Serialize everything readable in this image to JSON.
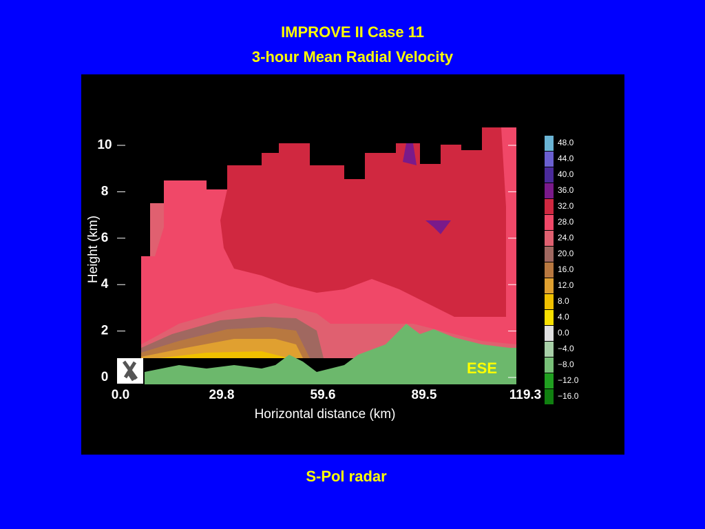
{
  "header": {
    "title": "IMPROVE II Case 11",
    "subtitle": "3-hour Mean Radial Velocity"
  },
  "figure": {
    "y_label": "Height (km)",
    "x_label": "Horizontal distance (km)",
    "yticks": [
      "0",
      "2",
      "4",
      "6",
      "8",
      "10"
    ],
    "xticks": [
      "0.0",
      "29.8",
      "59.6",
      "89.5",
      "119.3"
    ],
    "annotation": "ESE",
    "colorbar": [
      {
        "label": "48.0",
        "color": "#6ab4d4"
      },
      {
        "label": "44.0",
        "color": "#6a5fd0"
      },
      {
        "label": "40.0",
        "color": "#4a2a9a"
      },
      {
        "label": "36.0",
        "color": "#7a1a8a"
      },
      {
        "label": "32.0",
        "color": "#d02840"
      },
      {
        "label": "28.0",
        "color": "#f04868"
      },
      {
        "label": "24.0",
        "color": "#e06070"
      },
      {
        "label": "20.0",
        "color": "#a06860"
      },
      {
        "label": "16.0",
        "color": "#b87840"
      },
      {
        "label": "12.0",
        "color": "#e0a030"
      },
      {
        "label": "8.0",
        "color": "#f0c000"
      },
      {
        "label": "4.0",
        "color": "#f8e000"
      },
      {
        "label": "0.0",
        "color": "#e0e0e0"
      },
      {
        "label": "−4.0",
        "color": "#a8d0a8"
      },
      {
        "label": "−8.0",
        "color": "#78c078"
      },
      {
        "label": "−12.0",
        "color": "#20a020"
      },
      {
        "label": "−16.0",
        "color": "#108010"
      }
    ]
  },
  "footer": "S-Pol radar"
}
